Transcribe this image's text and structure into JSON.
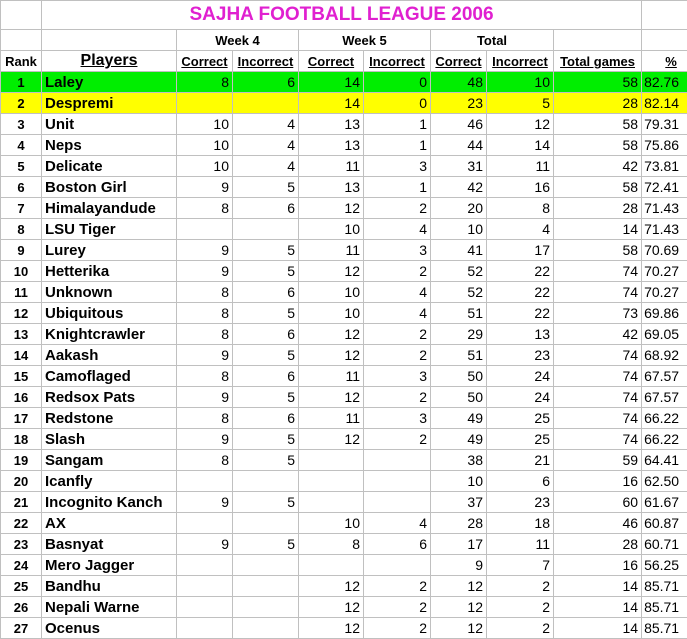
{
  "title": "SAJHA FOOTBALL LEAGUE 2006",
  "highlight_colors": {
    "rank1": "#00ee00",
    "rank2": "#ffff00",
    "title": "#e020d0"
  },
  "week_headers": [
    "Week 4",
    "Week 5",
    "Total"
  ],
  "columns": [
    "Rank",
    "Players",
    "Correct",
    "Incorrect",
    "Correct",
    "Incorrect",
    "Correct",
    "Incorrect",
    "Total games",
    "%"
  ],
  "rows": [
    [
      "1",
      "Laley",
      "8",
      "6",
      "14",
      "0",
      "48",
      "10",
      "58",
      "82.76"
    ],
    [
      "2",
      "Despremi",
      "",
      "",
      "14",
      "0",
      "23",
      "5",
      "28",
      "82.14"
    ],
    [
      "3",
      "Unit",
      "10",
      "4",
      "13",
      "1",
      "46",
      "12",
      "58",
      "79.31"
    ],
    [
      "4",
      "Neps",
      "10",
      "4",
      "13",
      "1",
      "44",
      "14",
      "58",
      "75.86"
    ],
    [
      "5",
      "Delicate",
      "10",
      "4",
      "11",
      "3",
      "31",
      "11",
      "42",
      "73.81"
    ],
    [
      "6",
      "Boston Girl",
      "9",
      "5",
      "13",
      "1",
      "42",
      "16",
      "58",
      "72.41"
    ],
    [
      "7",
      "Himalayandude",
      "8",
      "6",
      "12",
      "2",
      "20",
      "8",
      "28",
      "71.43"
    ],
    [
      "8",
      "LSU Tiger",
      "",
      "",
      "10",
      "4",
      "10",
      "4",
      "14",
      "71.43"
    ],
    [
      "9",
      "Lurey",
      "9",
      "5",
      "11",
      "3",
      "41",
      "17",
      "58",
      "70.69"
    ],
    [
      "10",
      "Hetterika",
      "9",
      "5",
      "12",
      "2",
      "52",
      "22",
      "74",
      "70.27"
    ],
    [
      "11",
      "Unknown",
      "8",
      "6",
      "10",
      "4",
      "52",
      "22",
      "74",
      "70.27"
    ],
    [
      "12",
      "Ubiquitous",
      "8",
      "5",
      "10",
      "4",
      "51",
      "22",
      "73",
      "69.86"
    ],
    [
      "13",
      "Knightcrawler",
      "8",
      "6",
      "12",
      "2",
      "29",
      "13",
      "42",
      "69.05"
    ],
    [
      "14",
      "Aakash",
      "9",
      "5",
      "12",
      "2",
      "51",
      "23",
      "74",
      "68.92"
    ],
    [
      "15",
      "Camoflaged",
      "8",
      "6",
      "11",
      "3",
      "50",
      "24",
      "74",
      "67.57"
    ],
    [
      "16",
      "Redsox Pats",
      "9",
      "5",
      "12",
      "2",
      "50",
      "24",
      "74",
      "67.57"
    ],
    [
      "17",
      "Redstone",
      "8",
      "6",
      "11",
      "3",
      "49",
      "25",
      "74",
      "66.22"
    ],
    [
      "18",
      "Slash",
      "9",
      "5",
      "12",
      "2",
      "49",
      "25",
      "74",
      "66.22"
    ],
    [
      "19",
      "Sangam",
      "8",
      "5",
      "",
      "",
      "38",
      "21",
      "59",
      "64.41"
    ],
    [
      "20",
      "Icanfly",
      "",
      "",
      "",
      "",
      "10",
      "6",
      "16",
      "62.50"
    ],
    [
      "21",
      "Incognito Kanch",
      "9",
      "5",
      "",
      "",
      "37",
      "23",
      "60",
      "61.67"
    ],
    [
      "22",
      "AX",
      "",
      "",
      "10",
      "4",
      "28",
      "18",
      "46",
      "60.87"
    ],
    [
      "23",
      "Basnyat",
      "9",
      "5",
      "8",
      "6",
      "17",
      "11",
      "28",
      "60.71"
    ],
    [
      "24",
      "Mero Jagger",
      "",
      "",
      "",
      "",
      "9",
      "7",
      "16",
      "56.25"
    ],
    [
      "25",
      "Bandhu",
      "",
      "",
      "12",
      "2",
      "12",
      "2",
      "14",
      "85.71"
    ],
    [
      "26",
      "Nepali Warne",
      "",
      "",
      "12",
      "2",
      "12",
      "2",
      "14",
      "85.71"
    ],
    [
      "27",
      "Ocenus",
      "",
      "",
      "12",
      "2",
      "12",
      "2",
      "14",
      "85.71"
    ]
  ]
}
